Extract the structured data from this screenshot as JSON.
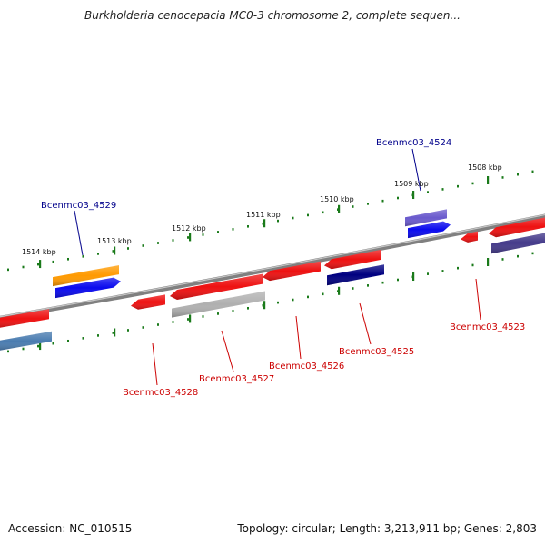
{
  "title": "Burkholderia cenocepacia MC0-3 chromosome 2, complete sequen...",
  "footer": {
    "accession": "Accession: NC_010515",
    "summary": "Topology: circular; Length: 3,213,911 bp; Genes: 2,803"
  },
  "ticks": [
    "1514 kbp",
    "1513 kbp",
    "1512 kbp",
    "1511 kbp",
    "1510 kbp",
    "1509 kbp",
    "1508 kbp"
  ],
  "gene_labels": [
    {
      "name": "Bcenmc03_4529",
      "color": "#00008b",
      "strand": "forward"
    },
    {
      "name": "Bcenmc03_4524",
      "color": "#00008b",
      "strand": "forward"
    },
    {
      "name": "Bcenmc03_4528",
      "color": "#cc0000",
      "strand": "reverse"
    },
    {
      "name": "Bcenmc03_4527",
      "color": "#cc0000",
      "strand": "reverse"
    },
    {
      "name": "Bcenmc03_4526",
      "color": "#cc0000",
      "strand": "reverse"
    },
    {
      "name": "Bcenmc03_4525",
      "color": "#cc0000",
      "strand": "reverse"
    },
    {
      "name": "Bcenmc03_4523",
      "color": "#cc0000",
      "strand": "reverse"
    }
  ],
  "colors": {
    "backbone": "#808080",
    "tick": "#1a7a1a",
    "red_feature": "#ee1111",
    "blue_feature": "#0a0aee",
    "orange_feature": "#ff9a00",
    "purple_feature": "#6a5acd",
    "navy_feature": "#000080",
    "steel_feature": "#4a7cb0",
    "grey_feature": "#b0b0b0",
    "slate_feature": "#443a8a"
  }
}
